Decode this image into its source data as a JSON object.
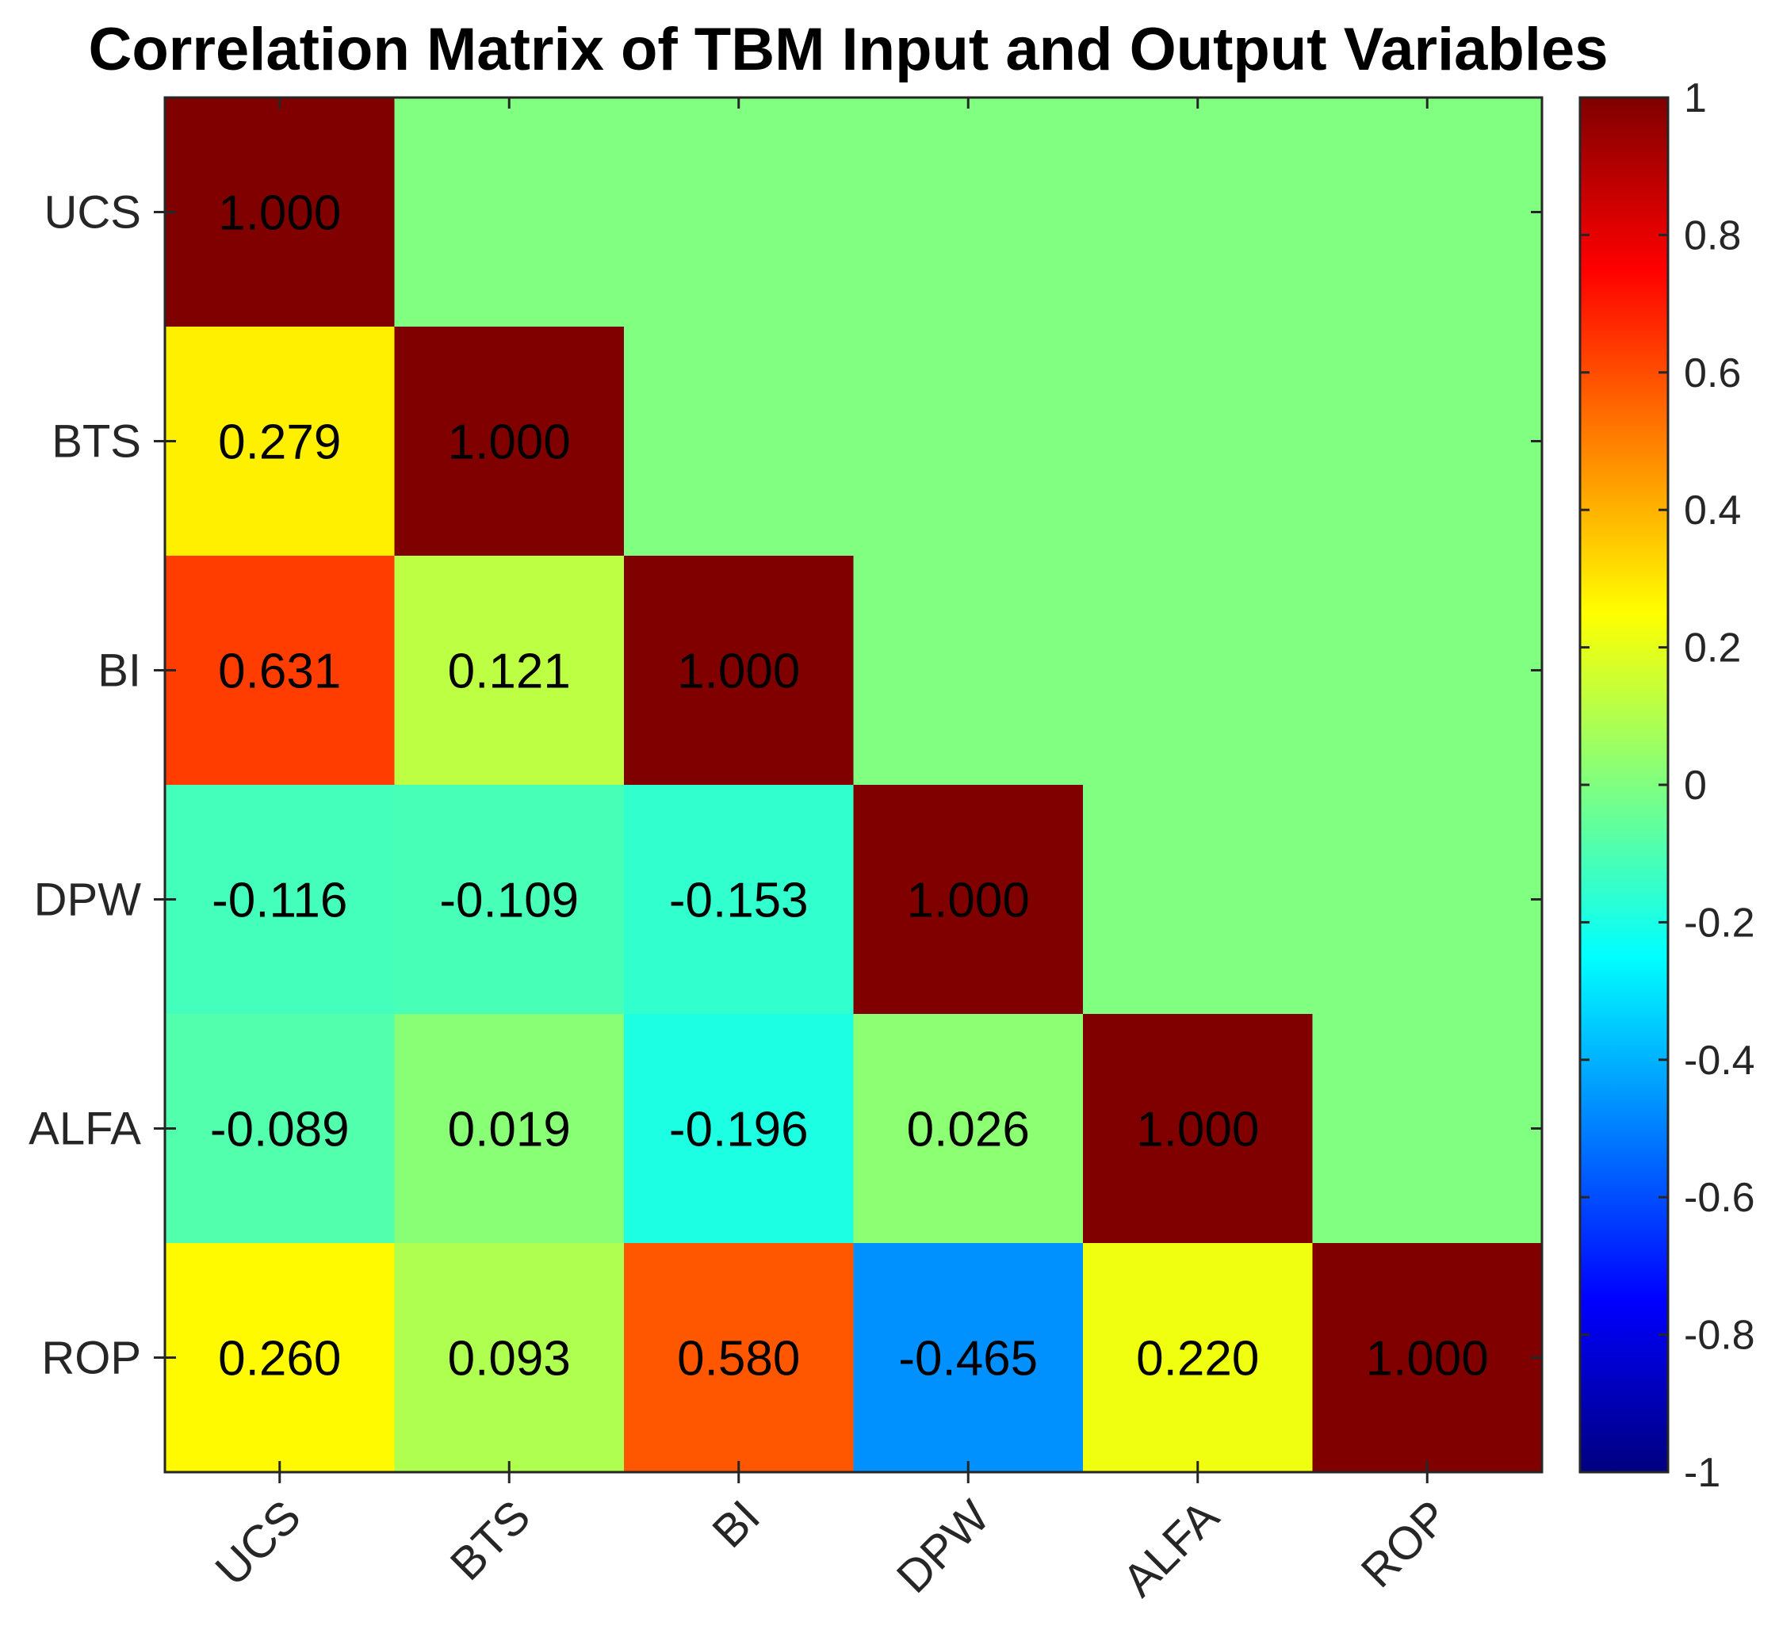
{
  "chart_data": {
    "type": "heatmap",
    "title": "Correlation Matrix of TBM Input and Output Variables",
    "xlabel": "",
    "ylabel": "",
    "x_categories": [
      "UCS",
      "BTS",
      "BI",
      "DPW",
      "ALFA",
      "ROP"
    ],
    "y_categories": [
      "UCS",
      "BTS",
      "BI",
      "DPW",
      "ALFA",
      "ROP"
    ],
    "lower_triangle_values": [
      [
        1.0
      ],
      [
        0.279,
        1.0
      ],
      [
        0.631,
        0.121,
        1.0
      ],
      [
        -0.116,
        -0.109,
        -0.153,
        1.0
      ],
      [
        -0.089,
        0.019,
        -0.196,
        0.026,
        1.0
      ],
      [
        0.26,
        0.093,
        0.58,
        -0.465,
        0.22,
        1.0
      ]
    ],
    "value_format_decimals": 3,
    "upper_triangle_fill_value": 0,
    "upper_triangle_color": "#80ff80",
    "colormap": "jet",
    "color_range": [
      -1,
      1
    ],
    "colorbar": {
      "position": "right",
      "ticks": [
        1,
        0.8,
        0.6,
        0.4,
        0.2,
        0,
        -0.2,
        -0.4,
        -0.6,
        -0.8,
        -1
      ],
      "tick_labels": [
        "1",
        "0.8",
        "0.6",
        "0.4",
        "0.2",
        "0",
        "-0.2",
        "-0.4",
        "-0.6",
        "-0.8",
        "-1"
      ]
    },
    "x_tick_rotation_deg": 45,
    "grid": false,
    "legend": "none"
  }
}
